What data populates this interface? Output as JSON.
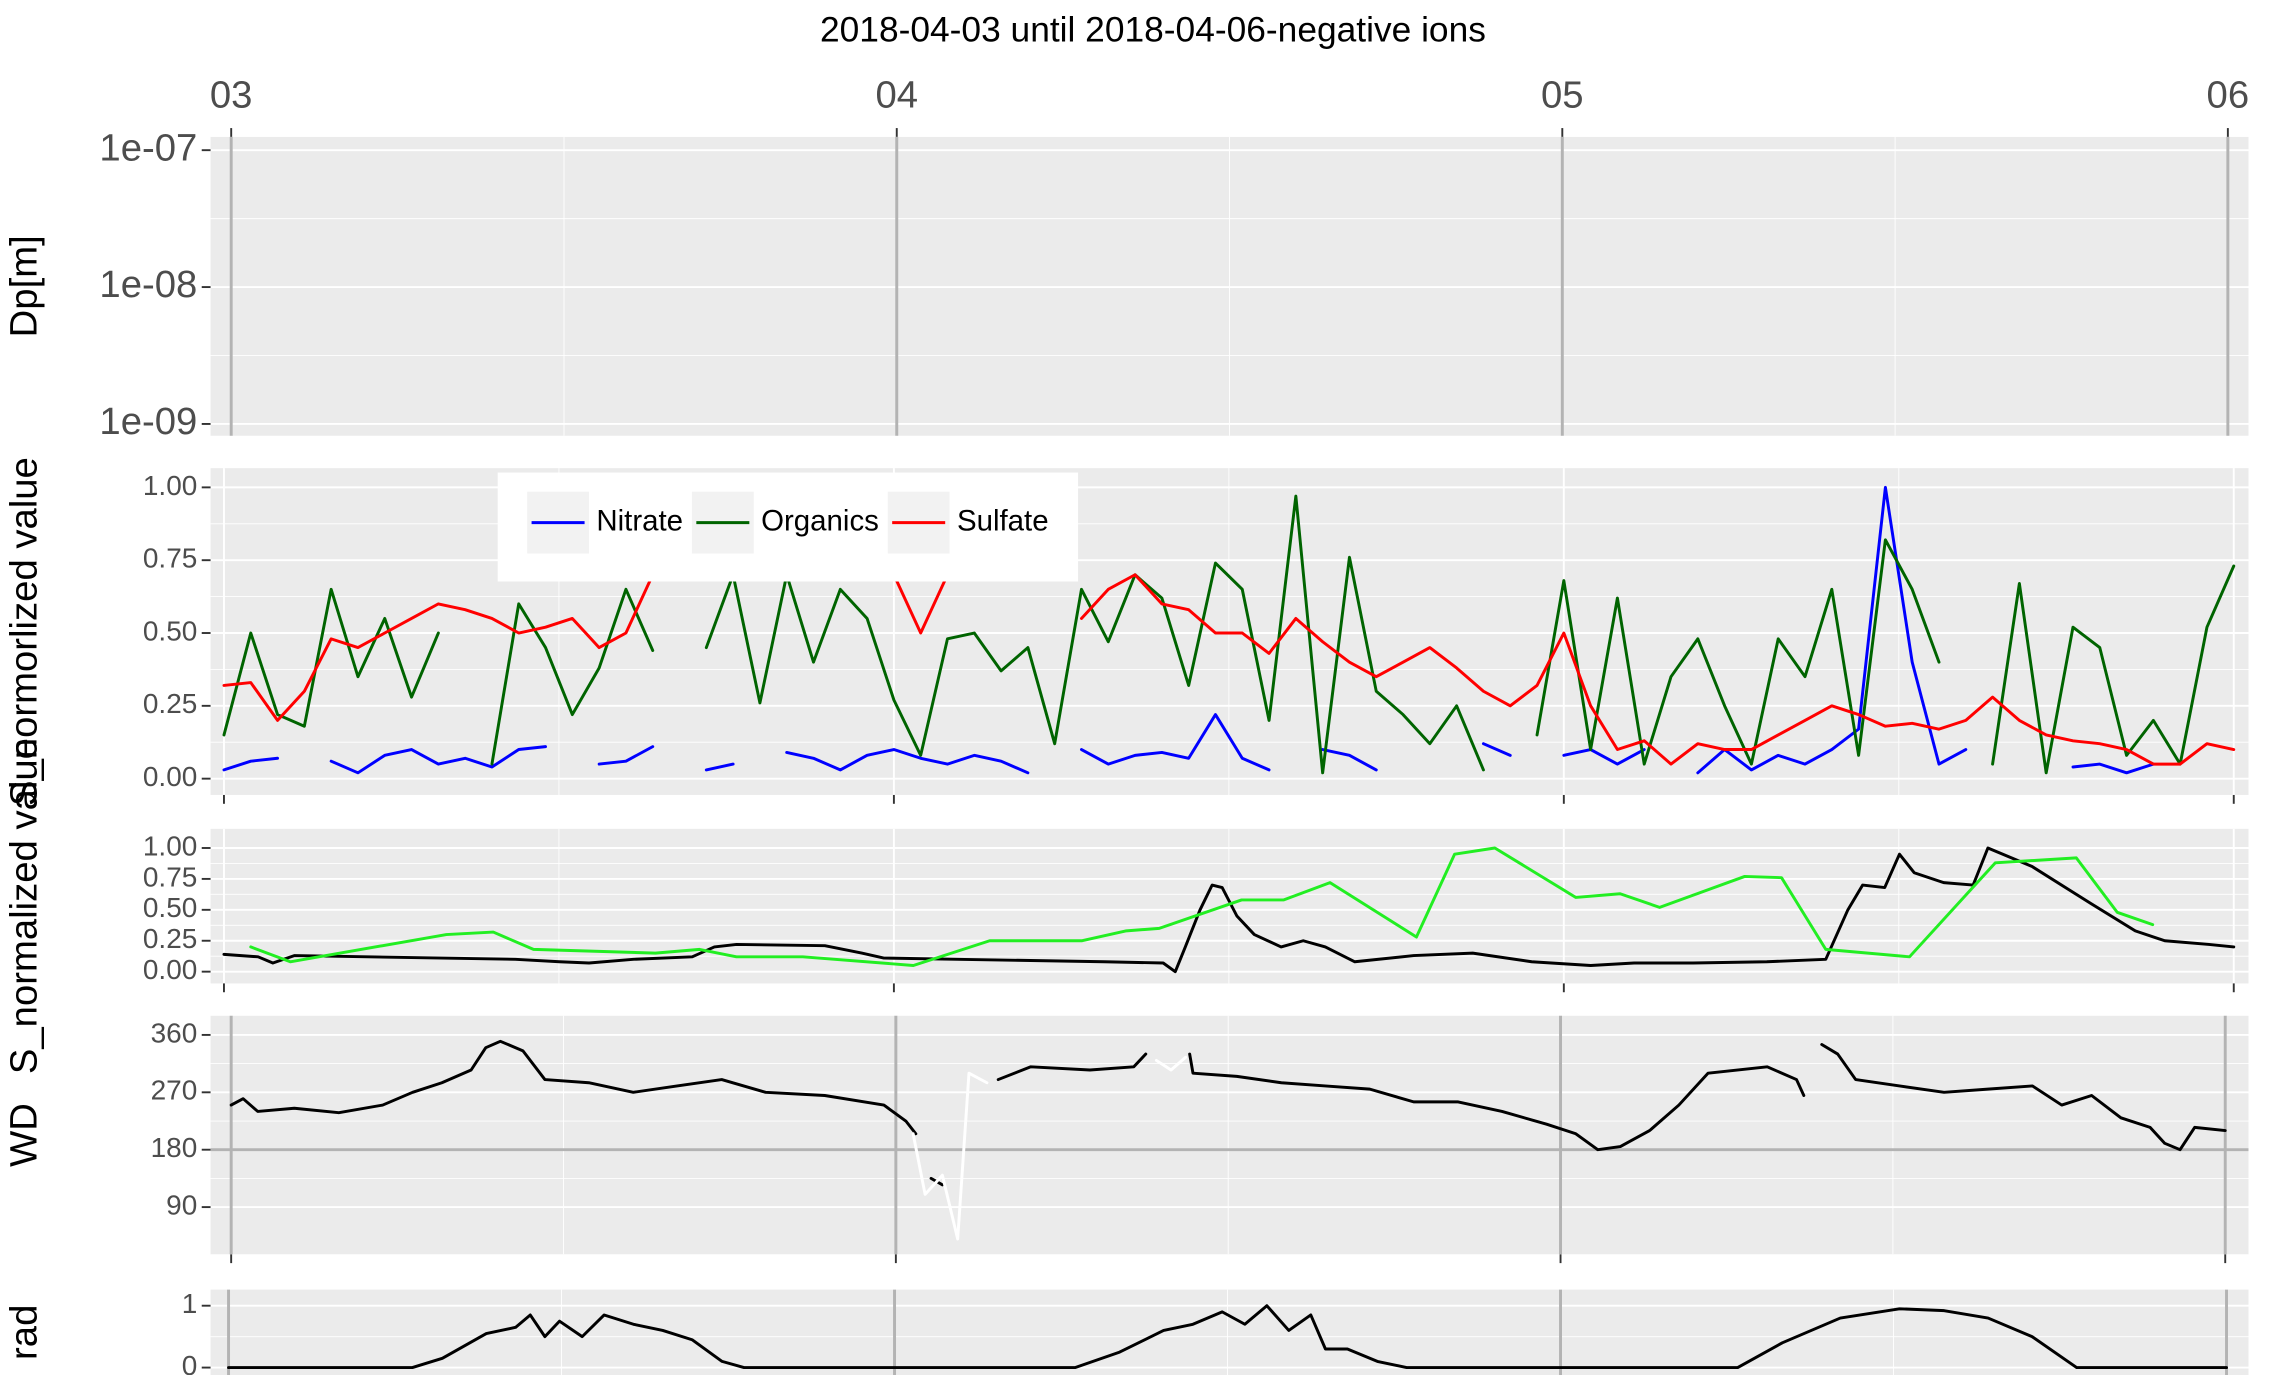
{
  "chart_data": [
    {
      "type": "line",
      "title": "2018-04-03 until 2018-04-06-negative ions",
      "ylabel": "Dp[m]",
      "log_y": true,
      "xlim": [
        2.969,
        6.031
      ],
      "ylim": [
        8.2e-10,
        1.25e-07
      ],
      "x_axis": "top",
      "xticks": [
        {
          "value": 3,
          "label": "03"
        },
        {
          "value": 4,
          "label": "04"
        },
        {
          "value": 5,
          "label": "05"
        },
        {
          "value": 6,
          "label": "06"
        }
      ],
      "yticks": [
        {
          "value": 1e-09,
          "label": "1e-09"
        },
        {
          "value": 1e-08,
          "label": "1e-08"
        },
        {
          "value": 1e-07,
          "label": "1e-07"
        }
      ],
      "vlines": [
        3,
        4,
        5,
        6
      ],
      "vline_color": "#b3b3b3",
      "grid": true,
      "series": []
    },
    {
      "type": "line",
      "ylabel": "S_normorlized value",
      "xlim": [
        2.98,
        6.022
      ],
      "ylim": [
        -0.056,
        1.066
      ],
      "xticks": [
        3,
        4,
        5,
        6
      ],
      "yticks": [
        {
          "value": 0,
          "label": "0.00"
        },
        0.25,
        {
          "value": 0.5,
          "label": "0.50"
        },
        0.75,
        {
          "value": 1,
          "label": "1.00"
        }
      ],
      "grid": true,
      "legend": "top-left",
      "x": [
        3,
        3.04,
        3.08,
        3.12,
        3.16,
        3.2,
        3.24,
        3.28,
        3.32,
        3.36,
        3.4,
        3.44,
        3.48,
        3.52,
        3.56,
        3.6,
        3.64,
        3.68,
        3.72,
        3.76,
        3.8,
        3.84,
        3.88,
        3.92,
        3.96,
        4,
        4.04,
        4.08,
        4.12,
        4.16,
        4.2,
        4.24,
        4.28,
        4.32,
        4.36,
        4.4,
        4.44,
        4.48,
        4.52,
        4.56,
        4.6,
        4.64,
        4.68,
        4.72,
        4.76,
        4.8,
        4.84,
        4.88,
        4.92,
        4.96,
        5,
        5.04,
        5.08,
        5.12,
        5.16,
        5.2,
        5.24,
        5.28,
        5.32,
        5.36,
        5.4,
        5.44,
        5.48,
        5.52,
        5.56,
        5.6,
        5.64,
        5.68,
        5.72,
        5.76,
        5.8,
        5.84,
        5.88,
        5.92,
        5.96,
        6
      ],
      "series": [
        {
          "name": "Nitrate",
          "color": "#0000ff",
          "values": [
            0.03,
            0.06,
            0.07,
            null,
            0.06,
            0.02,
            0.08,
            0.1,
            0.05,
            0.07,
            0.04,
            0.1,
            0.11,
            null,
            0.05,
            0.06,
            0.11,
            null,
            0.03,
            0.05,
            null,
            0.09,
            0.07,
            0.03,
            0.08,
            0.1,
            0.07,
            0.05,
            0.08,
            0.06,
            0.02,
            null,
            0.1,
            0.05,
            0.08,
            0.09,
            0.07,
            0.22,
            0.07,
            0.03,
            null,
            0.1,
            0.08,
            0.03,
            null,
            null,
            null,
            0.12,
            0.08,
            null,
            0.08,
            0.1,
            0.05,
            0.1,
            null,
            0.02,
            0.1,
            0.03,
            0.08,
            0.05,
            0.1,
            0.17,
            1.0,
            0.4,
            0.05,
            0.1,
            null,
            0.12,
            null,
            0.04,
            0.05,
            0.02,
            0.05,
            null,
            null,
            null
          ]
        },
        {
          "name": "Organics",
          "color": "#006400",
          "values": [
            0.15,
            0.5,
            0.22,
            0.18,
            0.65,
            0.35,
            0.55,
            0.28,
            0.5,
            null,
            0.05,
            0.6,
            0.45,
            0.22,
            0.38,
            0.65,
            0.44,
            null,
            0.45,
            0.7,
            0.26,
            0.7,
            0.4,
            0.65,
            0.55,
            0.27,
            0.08,
            0.48,
            0.5,
            0.37,
            0.45,
            0.12,
            0.65,
            0.47,
            0.7,
            0.62,
            0.32,
            0.74,
            0.65,
            0.2,
            0.97,
            0.02,
            0.76,
            0.3,
            0.22,
            0.12,
            0.25,
            0.03,
            null,
            0.15,
            0.68,
            0.1,
            0.62,
            0.05,
            0.35,
            0.48,
            0.25,
            0.05,
            0.48,
            0.35,
            0.65,
            0.08,
            0.82,
            0.65,
            0.4,
            null,
            0.05,
            0.67,
            0.02,
            0.52,
            0.45,
            0.08,
            0.2,
            0.05,
            0.52,
            0.73
          ]
        },
        {
          "name": "Sulfate",
          "color": "#ff0000",
          "values": [
            0.32,
            0.33,
            0.2,
            0.3,
            0.48,
            0.45,
            0.5,
            0.55,
            0.6,
            0.58,
            0.55,
            0.5,
            0.52,
            0.55,
            0.45,
            0.5,
            0.7,
            null,
            null,
            null,
            null,
            null,
            null,
            null,
            null,
            0.7,
            0.5,
            0.7,
            null,
            null,
            null,
            null,
            0.55,
            0.65,
            0.7,
            0.6,
            0.58,
            0.5,
            0.5,
            0.43,
            0.55,
            0.47,
            0.4,
            0.35,
            0.4,
            0.45,
            0.38,
            0.3,
            0.25,
            0.32,
            0.5,
            0.25,
            0.1,
            0.13,
            0.05,
            0.12,
            0.1,
            0.1,
            0.15,
            0.2,
            0.25,
            0.22,
            0.18,
            0.19,
            0.17,
            0.2,
            0.28,
            0.2,
            0.15,
            0.13,
            0.12,
            0.1,
            0.05,
            0.05,
            0.12,
            0.1
          ]
        }
      ]
    },
    {
      "type": "line",
      "ylabel": "S_normalized value",
      "xlim": [
        2.98,
        6.022
      ],
      "ylim": [
        -0.095,
        1.155
      ],
      "xticks": [
        3,
        4,
        5,
        6
      ],
      "yticks": [
        {
          "value": 0,
          "label": "0.00"
        },
        0.25,
        {
          "value": 0.5,
          "label": "0.50"
        },
        0.75,
        {
          "value": 1,
          "label": "1.00"
        }
      ],
      "grid": true,
      "series": [
        {
          "color": "#000000",
          "x": [
            3,
            3.051,
            3.073,
            3.105,
            3.215,
            3.325,
            3.435,
            3.501,
            3.545,
            3.611,
            3.699,
            3.732,
            3.765,
            3.897,
            3.952,
            3.985,
            4.095,
            4.204,
            4.314,
            4.402,
            4.42,
            4.435,
            4.457,
            4.475,
            4.49,
            4.512,
            4.538,
            4.578,
            4.611,
            4.644,
            4.688,
            4.776,
            4.864,
            4.952,
            5.04,
            5.105,
            5.193,
            5.303,
            5.391,
            5.424,
            5.446,
            5.479,
            5.501,
            5.523,
            5.567,
            5.611,
            5.633,
            5.699,
            5.787,
            5.853,
            5.897,
            5.963,
            6
          ],
          "values": [
            0.14,
            0.12,
            0.07,
            0.13,
            0.12,
            0.11,
            0.1,
            0.08,
            0.07,
            0.1,
            0.12,
            0.2,
            0.22,
            0.21,
            0.15,
            0.11,
            0.1,
            0.09,
            0.08,
            0.07,
            0.0,
            0.2,
            0.5,
            0.7,
            0.68,
            0.45,
            0.3,
            0.2,
            0.25,
            0.2,
            0.08,
            0.13,
            0.15,
            0.08,
            0.05,
            0.07,
            0.07,
            0.08,
            0.1,
            0.5,
            0.7,
            0.68,
            0.95,
            0.8,
            0.72,
            0.7,
            1.0,
            0.85,
            0.55,
            0.33,
            0.25,
            0.22,
            0.2
          ]
        },
        {
          "color": "#22ee22",
          "x": [
            3.04,
            3.099,
            3.332,
            3.402,
            3.462,
            3.644,
            3.71,
            3.765,
            3.864,
            4.029,
            4.143,
            4.281,
            4.347,
            4.396,
            4.519,
            4.582,
            4.651,
            4.78,
            4.837,
            4.897,
            5.018,
            5.084,
            5.143,
            5.27,
            5.325,
            5.391,
            5.516,
            5.644,
            5.765,
            5.826,
            5.879
          ],
          "values": [
            0.2,
            0.08,
            0.3,
            0.32,
            0.18,
            0.15,
            0.18,
            0.12,
            0.12,
            0.05,
            0.25,
            0.25,
            0.33,
            0.35,
            0.58,
            0.58,
            0.72,
            0.28,
            0.95,
            1.0,
            0.6,
            0.63,
            0.52,
            0.77,
            0.76,
            0.18,
            0.12,
            0.88,
            0.92,
            0.48,
            0.38
          ]
        }
      ]
    },
    {
      "type": "line",
      "ylabel": "WD",
      "xlim": [
        2.969,
        6.035
      ],
      "ylim": [
        16,
        390
      ],
      "xticks": [
        3,
        4,
        5,
        6
      ],
      "yticks": [
        90,
        180,
        270,
        360
      ],
      "grid": true,
      "vlines": [
        3,
        4,
        5,
        6
      ],
      "vline_color": "#b3b3b3",
      "hline": 180,
      "hline_color": "#b3b3b3",
      "series": [
        {
          "color": "#000000",
          "x": [
            3,
            3.018,
            3.04,
            3.095,
            3.162,
            3.228,
            3.273,
            3.317,
            3.361,
            3.383,
            3.405,
            3.439,
            3.472,
            3.538,
            3.605,
            3.671,
            3.738,
            3.804,
            3.893,
            3.982,
            4.015,
            4.03,
            4.04,
            4.053,
            4.07,
            4.11,
            4.154,
            4.203,
            4.292,
            4.358,
            4.376,
            4.41,
            4.442,
            4.447,
            4.513,
            4.58,
            4.646,
            4.713,
            4.779,
            4.846,
            4.912,
            4.979,
            5.023,
            5.056,
            5.09,
            5.134,
            5.178,
            5.222,
            5.311,
            5.355,
            5.366,
            5.38,
            5.393,
            5.417,
            5.444,
            5.51,
            5.577,
            5.643,
            5.71,
            5.754,
            5.799,
            5.843,
            5.887,
            5.909,
            5.932,
            5.954,
            6
          ],
          "values": [
            250,
            260,
            240,
            245,
            238,
            250,
            270,
            285,
            305,
            340,
            350,
            335,
            290,
            285,
            270,
            280,
            290,
            270,
            265,
            250,
            225,
            205,
            null,
            135,
            125,
            null,
            290,
            310,
            305,
            310,
            330,
            null,
            330,
            300,
            295,
            285,
            280,
            275,
            255,
            255,
            240,
            220,
            205,
            180,
            185,
            210,
            250,
            300,
            310,
            290,
            265,
            null,
            345,
            330,
            290,
            280,
            270,
            275,
            280,
            250,
            265,
            230,
            215,
            190,
            180,
            215,
            210
          ]
        },
        {
          "color": "#ffffff",
          "x": [
            4.026,
            4.044,
            4.07,
            4.093,
            4.11,
            4.137,
            4.26,
            4.392,
            4.414,
            4.436
          ],
          "values": [
            205,
            110,
            140,
            40,
            300,
            285,
            null,
            320,
            305,
            325
          ]
        }
      ]
    },
    {
      "type": "line",
      "ylabel": "rad",
      "xlim": [
        2.973,
        6.033
      ],
      "ylim": [
        -0.12,
        1.26
      ],
      "xticks": [
        3,
        4,
        5,
        6
      ],
      "yticks": [
        0,
        1
      ],
      "grid": true,
      "vlines": [
        3,
        4,
        5,
        6
      ],
      "vline_color": "#b3b3b3",
      "series": [
        {
          "color": "#000000",
          "x": [
            3,
            3.276,
            3.321,
            3.387,
            3.431,
            3.453,
            3.475,
            3.497,
            3.531,
            3.564,
            3.608,
            3.652,
            3.696,
            3.741,
            3.774,
            4.271,
            4.338,
            4.404,
            4.448,
            4.492,
            4.526,
            4.559,
            4.592,
            4.625,
            4.647,
            4.68,
            4.725,
            4.769,
            5.266,
            5.333,
            5.42,
            5.509,
            5.576,
            5.642,
            5.708,
            5.775,
            6
          ],
          "values": [
            0,
            0,
            0.15,
            0.55,
            0.65,
            0.85,
            0.5,
            0.75,
            0.5,
            0.85,
            0.7,
            0.6,
            0.45,
            0.1,
            0,
            0,
            0.25,
            0.6,
            0.7,
            0.9,
            0.7,
            1.0,
            0.6,
            0.85,
            0.3,
            0.3,
            0.1,
            0,
            0,
            0.4,
            0.8,
            0.95,
            0.92,
            0.8,
            0.5,
            0,
            0
          ]
        }
      ]
    }
  ]
}
